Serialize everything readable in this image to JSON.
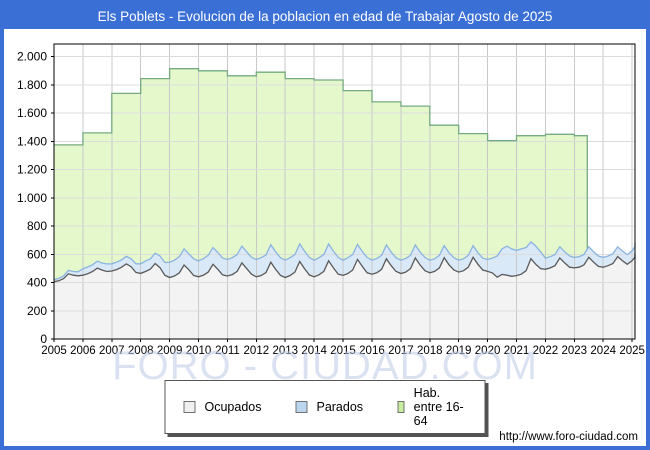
{
  "header": {
    "title": "Els Poblets - Evolucion de la poblacion en edad de Trabajar Agosto de 2025",
    "bar_color": "#3a6fd6",
    "text_color": "#ffffff"
  },
  "watermark": "FORO - CIUDAD.COM",
  "footer": {
    "url": "http://www.foro-ciudad.com"
  },
  "chart_data": {
    "type": "area",
    "title": "Els Poblets - Evolucion de la poblacion en edad de Trabajar Agosto de 2025",
    "xlabel": "",
    "ylabel": "",
    "x_domain": [
      2005,
      2025.1
    ],
    "y_domain": [
      0,
      2090
    ],
    "x_ticks": [
      2005,
      2006,
      2007,
      2008,
      2009,
      2010,
      2011,
      2012,
      2013,
      2014,
      2015,
      2016,
      2017,
      2018,
      2019,
      2020,
      2021,
      2022,
      2023,
      2024,
      2025
    ],
    "y_tick_values": [
      0,
      200,
      400,
      600,
      800,
      1000,
      1200,
      1400,
      1600,
      1800,
      2000
    ],
    "y_tick_labels": [
      "0",
      "200",
      "400",
      "600",
      "800",
      "1.000",
      "1.200",
      "1.400",
      "1.600",
      "1.800",
      "2.000"
    ],
    "grid": {
      "vertical_color": "#c8c8c8",
      "horizontal_color": "#dcdcdc",
      "on": true
    },
    "plot_border_color": "#000000",
    "legend": {
      "position": "bottom",
      "items": [
        {
          "label": "Ocupados",
          "swatch": "#f0f0f0"
        },
        {
          "label": "Parados",
          "swatch": "#bcd6f0"
        },
        {
          "label": "Hab. entre 16-64",
          "swatch": "#c6ee9d"
        }
      ]
    },
    "series": [
      {
        "name": "Hab. entre 16-64",
        "type": "step-area",
        "line_color": "#74ab81",
        "fill_color": "#e4f8cc",
        "years": [
          2005,
          2006,
          2007,
          2008,
          2009,
          2010,
          2011,
          2012,
          2013,
          2014,
          2015,
          2016,
          2017,
          2018,
          2019,
          2020,
          2021,
          2022,
          2023
        ],
        "values": [
          1375,
          1460,
          1740,
          1845,
          1915,
          1900,
          1865,
          1890,
          1845,
          1835,
          1760,
          1680,
          1650,
          1515,
          1455,
          1405,
          1440,
          1450,
          1440
        ],
        "end_x": 2023.45
      },
      {
        "name": "Ocupados + Parados (borde superior de Parados)",
        "type": "area",
        "line_color": "#8ab4e0",
        "fill_color": "#d9e9f8",
        "x_start": 2005,
        "x_step": 0.166667,
        "values": [
          420,
          430,
          448,
          486,
          478,
          476,
          498,
          510,
          526,
          551,
          538,
          532,
          533,
          545,
          560,
          586,
          568,
          533,
          533,
          553,
          568,
          608,
          588,
          543,
          543,
          558,
          583,
          638,
          603,
          568,
          553,
          568,
          593,
          648,
          613,
          573,
          563,
          576,
          598,
          658,
          618,
          578,
          563,
          576,
          596,
          668,
          618,
          576,
          558,
          576,
          598,
          673,
          623,
          578,
          558,
          576,
          598,
          673,
          623,
          578,
          558,
          576,
          598,
          670,
          620,
          578,
          558,
          570,
          593,
          666,
          616,
          576,
          558,
          570,
          593,
          666,
          616,
          578,
          558,
          568,
          593,
          661,
          611,
          576,
          558,
          568,
          593,
          661,
          611,
          573,
          563,
          573,
          588,
          638,
          658,
          638,
          628,
          638,
          648,
          688,
          658,
          618,
          573,
          583,
          598,
          653,
          618,
          588,
          578,
          583,
          598,
          653,
          618,
          588,
          578,
          588,
          603,
          653,
          623,
          598,
          625,
          655,
          683
        ]
      },
      {
        "name": "Ocupados",
        "type": "area",
        "line_color": "#5a5a5a",
        "fill_color": "#f3f3f3",
        "x_start": 2005,
        "x_step": 0.166667,
        "values": [
          405,
          412,
          428,
          462,
          452,
          448,
          452,
          462,
          478,
          502,
          488,
          478,
          482,
          492,
          508,
          532,
          512,
          472,
          465,
          478,
          495,
          535,
          505,
          452,
          436,
          446,
          468,
          524,
          490,
          450,
          441,
          451,
          474,
          529,
          494,
          454,
          446,
          456,
          479,
          539,
          499,
          459,
          441,
          450,
          471,
          544,
          494,
          451,
          436,
          450,
          474,
          549,
          499,
          454,
          441,
          455,
          479,
          554,
          504,
          459,
          451,
          464,
          489,
          564,
          514,
          469,
          459,
          469,
          494,
          569,
          519,
          479,
          464,
          474,
          499,
          574,
          524,
          484,
          469,
          479,
          504,
          576,
          526,
          489,
          474,
          484,
          509,
          579,
          529,
          489,
          479,
          468,
          438,
          458,
          452,
          444,
          449,
          459,
          484,
          569,
          529,
          499,
          494,
          504,
          519,
          574,
          539,
          509,
          504,
          509,
          524,
          579,
          544,
          514,
          509,
          519,
          534,
          584,
          554,
          529,
          555,
          580,
          605
        ]
      }
    ]
  }
}
